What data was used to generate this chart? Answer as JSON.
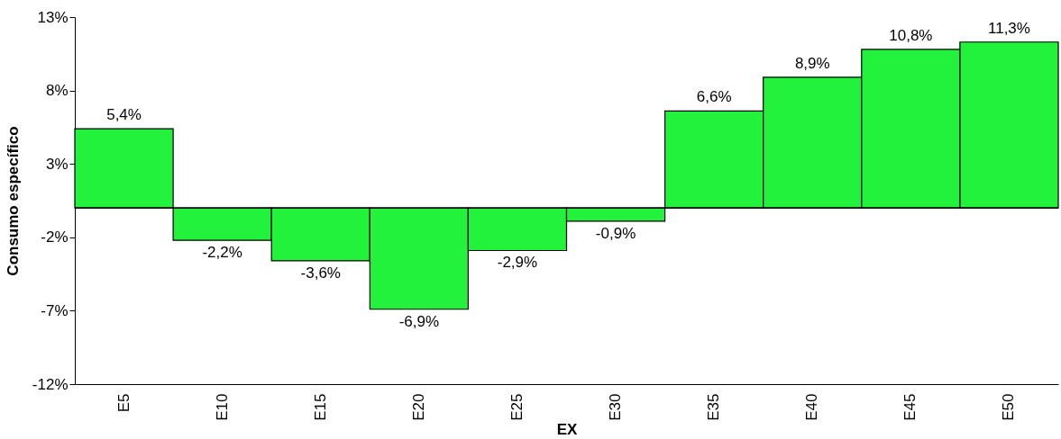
{
  "chart_data": {
    "type": "bar",
    "xlabel": "EX",
    "ylabel": "Consumo específico",
    "categories": [
      "E5",
      "E10",
      "E15",
      "E20",
      "E25",
      "E30",
      "E35",
      "E40",
      "E45",
      "E50"
    ],
    "values": [
      5.4,
      -2.2,
      -3.6,
      -6.9,
      -2.9,
      -0.9,
      6.6,
      8.9,
      10.8,
      11.3
    ],
    "value_labels": [
      "5,4%",
      "-2,2%",
      "-3,6%",
      "-6,9%",
      "-2,9%",
      "-0,9%",
      "6,6%",
      "8,9%",
      "10,8%",
      "11,3%"
    ],
    "color": "#22f23c",
    "ylim": [
      -12,
      13
    ],
    "yticks": [
      {
        "value": -12,
        "label": "-12%"
      },
      {
        "value": -7,
        "label": "-7%"
      },
      {
        "value": -2,
        "label": "-2%"
      },
      {
        "value": 3,
        "label": "3%"
      },
      {
        "value": 8,
        "label": "8%"
      },
      {
        "value": 13,
        "label": "13%"
      }
    ],
    "ref_lines": [
      {
        "axis": "y",
        "value": 0
      }
    ],
    "grid": false
  }
}
